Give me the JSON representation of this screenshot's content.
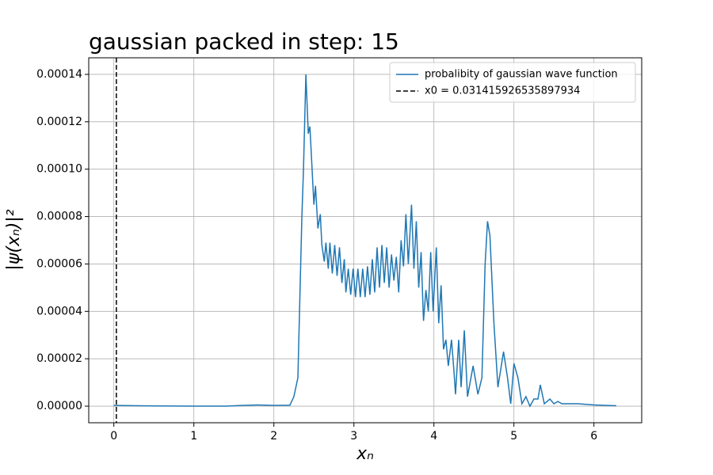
{
  "chart_data": {
    "type": "line",
    "title": "gaussian packed in step: 15",
    "x_label": "xₙ",
    "y_label": "|ψ(xₙ)|²",
    "xlim": [
      -0.314,
      6.597
    ],
    "ylim": [
      -7e-06,
      0.000147
    ],
    "xticks": [
      0,
      1,
      2,
      3,
      4,
      5,
      6
    ],
    "yticks": [
      {
        "value": 0,
        "label": "0.00000"
      },
      {
        "value": 2e-05,
        "label": "0.00002"
      },
      {
        "value": 4e-05,
        "label": "0.00004"
      },
      {
        "value": 6e-05,
        "label": "0.00006"
      },
      {
        "value": 8e-05,
        "label": "0.00008"
      },
      {
        "value": 0.0001,
        "label": "0.00010"
      },
      {
        "value": 0.00012,
        "label": "0.00012"
      },
      {
        "value": 0.00014,
        "label": "0.00014"
      }
    ],
    "grid": true,
    "legend": "upper right",
    "x": [
      0,
      0.5,
      1.0,
      1.4,
      1.6,
      1.8,
      2.0,
      2.2,
      2.25,
      2.3,
      2.35,
      2.37,
      2.4,
      2.43,
      2.45,
      2.47,
      2.5,
      2.52,
      2.55,
      2.58,
      2.6,
      2.63,
      2.65,
      2.68,
      2.7,
      2.73,
      2.76,
      2.79,
      2.82,
      2.85,
      2.88,
      2.9,
      2.93,
      2.96,
      2.99,
      3.02,
      3.05,
      3.08,
      3.11,
      3.14,
      3.17,
      3.2,
      3.23,
      3.26,
      3.29,
      3.32,
      3.35,
      3.38,
      3.41,
      3.44,
      3.47,
      3.5,
      3.53,
      3.56,
      3.59,
      3.62,
      3.65,
      3.68,
      3.72,
      3.75,
      3.78,
      3.81,
      3.84,
      3.87,
      3.9,
      3.93,
      3.96,
      3.99,
      4.03,
      4.06,
      4.09,
      4.12,
      4.15,
      4.18,
      4.22,
      4.25,
      4.27,
      4.31,
      4.34,
      4.38,
      4.42,
      4.49,
      4.55,
      4.6,
      4.64,
      4.67,
      4.7,
      4.75,
      4.8,
      4.87,
      4.92,
      4.96,
      5.0,
      5.05,
      5.1,
      5.15,
      5.2,
      5.25,
      5.3,
      5.33,
      5.38,
      5.45,
      5.5,
      5.55,
      5.6,
      5.8,
      6.0,
      6.28
    ],
    "series": [
      {
        "name": "probalibity of gaussian wave function",
        "color": "#1f77b4",
        "values": [
          3e-07,
          1e-07,
          0,
          0,
          3e-07,
          5e-07,
          3e-07,
          4e-07,
          4e-06,
          1.2e-05,
          8e-05,
          0.0001,
          0.00014,
          0.000115,
          0.000118,
          0.000105,
          8.5e-05,
          9.3e-05,
          7.5e-05,
          8.1e-05,
          6.8e-05,
          6.1e-05,
          6.9e-05,
          5.8e-05,
          6.9e-05,
          5.6e-05,
          6.8e-05,
          5.5e-05,
          6.7e-05,
          5.2e-05,
          6.2e-05,
          4.8e-05,
          5.8e-05,
          4.7e-05,
          5.8e-05,
          4.6e-05,
          5.8e-05,
          4.6e-05,
          5.8e-05,
          4.6e-05,
          5.9e-05,
          4.7e-05,
          6.2e-05,
          4.8e-05,
          6.7e-05,
          5e-05,
          6.8e-05,
          5.2e-05,
          6.7e-05,
          5e-05,
          6.4e-05,
          5.3e-05,
          6.3e-05,
          4.8e-05,
          7e-05,
          5.9e-05,
          8.1e-05,
          6e-05,
          8.5e-05,
          5.8e-05,
          7.8e-05,
          5e-05,
          6.5e-05,
          3.6e-05,
          4.9e-05,
          4e-05,
          6.5e-05,
          4e-05,
          6.7e-05,
          3.5e-05,
          5.1e-05,
          2.4e-05,
          2.8e-05,
          1.7e-05,
          2.8e-05,
          1.5e-05,
          5e-06,
          2.8e-05,
          8e-06,
          3.2e-05,
          4e-06,
          1.7e-05,
          5e-06,
          1.2e-05,
          6e-05,
          7.8e-05,
          7.2e-05,
          3.5e-05,
          8e-06,
          2.3e-05,
          1.2e-05,
          1e-06,
          1.8e-05,
          1.2e-05,
          1e-06,
          4e-06,
          0,
          3e-06,
          3e-06,
          9e-06,
          1e-06,
          3e-06,
          1e-06,
          2e-06,
          1e-06,
          1e-06,
          5e-07,
          2e-07
        ]
      }
    ],
    "vline": {
      "name": "x0 = 0.031415926535897934",
      "x": 0.031415926535897934,
      "color": "#000000",
      "style": "dashed"
    }
  }
}
